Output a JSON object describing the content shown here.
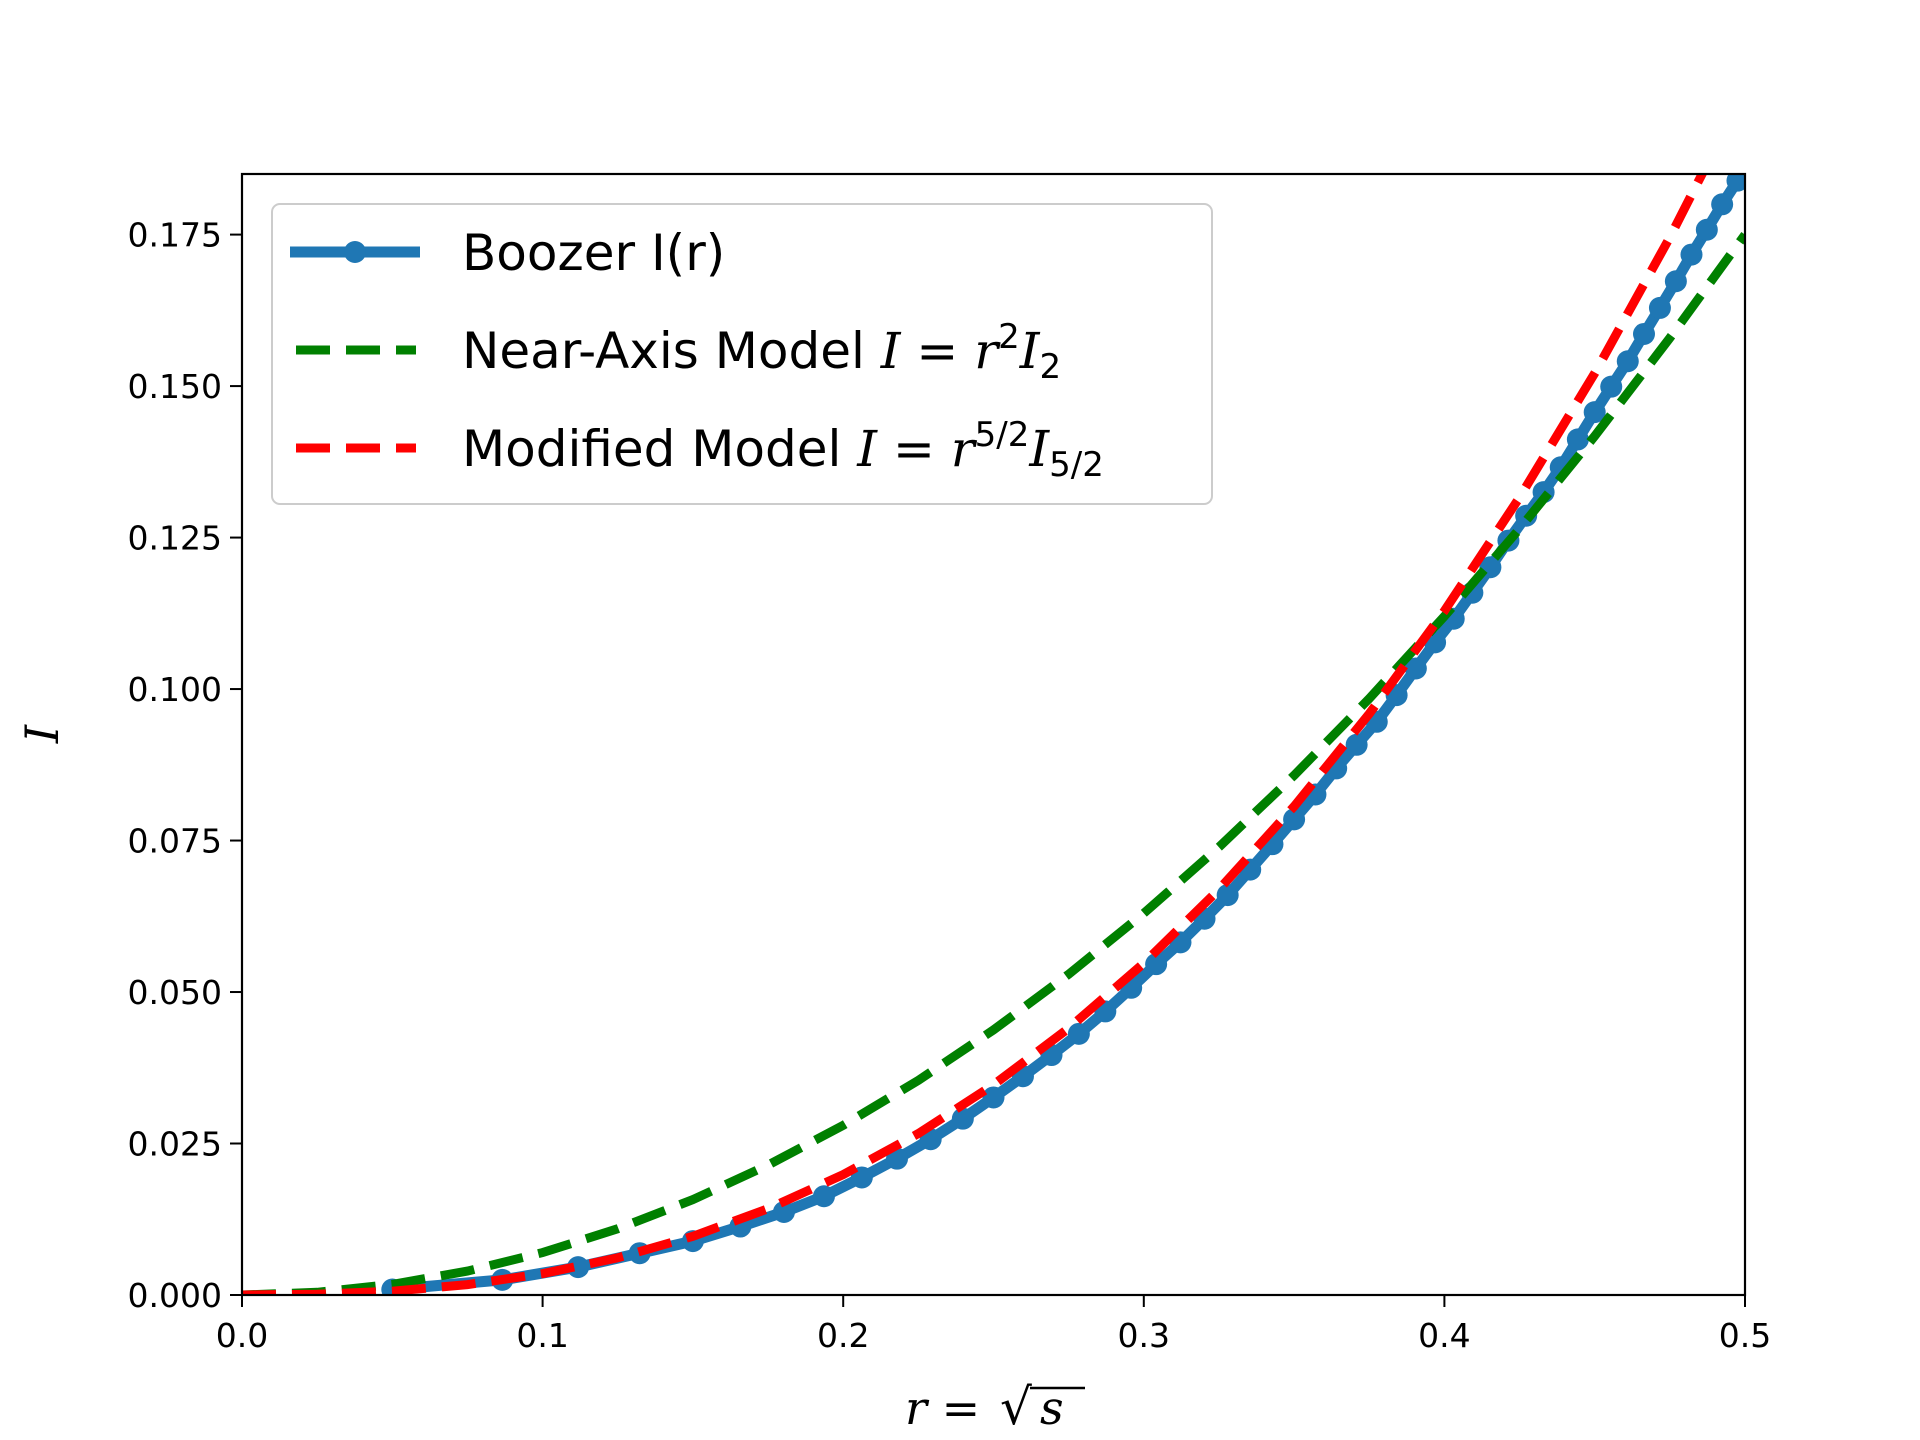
{
  "chart_data": {
    "type": "line",
    "title": "",
    "xlabel": "r = √s",
    "ylabel": "I",
    "xlim": [
      0.0,
      0.5
    ],
    "ylim": [
      0.0,
      0.185
    ],
    "grid": false,
    "legend_position": "top-left",
    "x_ticks": [
      "0.0",
      "0.1",
      "0.2",
      "0.3",
      "0.4",
      "0.5"
    ],
    "y_ticks": [
      "0.000",
      "0.025",
      "0.050",
      "0.075",
      "0.100",
      "0.125",
      "0.150",
      "0.175"
    ],
    "series": [
      {
        "name": "Boozer I(r)",
        "style": "solid-markers",
        "color": "#1f77b4",
        "x": [
          0.05,
          0.0866,
          0.1118,
          0.1323,
          0.15,
          0.1658,
          0.1803,
          0.1936,
          0.2062,
          0.2179,
          0.2291,
          0.2398,
          0.25,
          0.2598,
          0.2693,
          0.2784,
          0.2872,
          0.2958,
          0.3041,
          0.3122,
          0.3202,
          0.3279,
          0.3354,
          0.3428,
          0.35,
          0.3571,
          0.364,
          0.3708,
          0.3775,
          0.3841,
          0.3905,
          0.3969,
          0.4031,
          0.4093,
          0.4153,
          0.4213,
          0.4272,
          0.433,
          0.4387,
          0.4444,
          0.45,
          0.4555,
          0.461,
          0.4664,
          0.4717,
          0.477,
          0.4822,
          0.4873,
          0.4924,
          0.4975
        ],
        "y": [
          0.0009,
          0.0025,
          0.0046,
          0.0069,
          0.0089,
          0.0113,
          0.0137,
          0.0163,
          0.0194,
          0.0225,
          0.0257,
          0.0291,
          0.0326,
          0.0361,
          0.0396,
          0.0431,
          0.0468,
          0.0507,
          0.0546,
          0.0582,
          0.0621,
          0.066,
          0.0702,
          0.0744,
          0.0785,
          0.0826,
          0.0869,
          0.0908,
          0.0946,
          0.099,
          0.1034,
          0.1077,
          0.1116,
          0.1159,
          0.1201,
          0.1245,
          0.1286,
          0.1325,
          0.1366,
          0.1412,
          0.1457,
          0.1499,
          0.1541,
          0.1586,
          0.1629,
          0.1673,
          0.1717,
          0.1758,
          0.18,
          0.1839
        ]
      },
      {
        "name": "Near-Axis Model",
        "formula": "I = r²I₂",
        "style": "dashed",
        "color": "#008000",
        "x": [
          0.0,
          0.025,
          0.05,
          0.075,
          0.1,
          0.125,
          0.15,
          0.175,
          0.2,
          0.225,
          0.25,
          0.275,
          0.3,
          0.325,
          0.35,
          0.375,
          0.4,
          0.425,
          0.45,
          0.475,
          0.5
        ],
        "y": [
          0.0,
          0.00044,
          0.00175,
          0.00394,
          0.007,
          0.01094,
          0.01575,
          0.02144,
          0.028,
          0.03544,
          0.04375,
          0.05294,
          0.063,
          0.07394,
          0.08575,
          0.09844,
          0.112,
          0.12644,
          0.14175,
          0.15794,
          0.175
        ]
      },
      {
        "name": "Modified Model",
        "formula": "I = r^{5/2}I_{5/2}",
        "style": "dashed",
        "color": "#ff0000",
        "x": [
          0.0,
          0.025,
          0.05,
          0.075,
          0.1,
          0.125,
          0.15,
          0.175,
          0.2,
          0.225,
          0.25,
          0.275,
          0.3,
          0.325,
          0.35,
          0.375,
          0.4,
          0.425,
          0.45,
          0.475,
          0.5
        ],
        "y": [
          0.0,
          0.00011,
          0.00062,
          0.00171,
          0.00351,
          0.00614,
          0.00969,
          0.01424,
          0.01987,
          0.02666,
          0.03469,
          0.04403,
          0.05475,
          0.06693,
          0.08063,
          0.09593,
          0.1129,
          0.13161,
          0.15213,
          0.17454,
          0.19889
        ]
      }
    ]
  },
  "legend": {
    "boozer_label": "Boozer I(r)",
    "near_axis_text": "Near-Axis Model",
    "modified_text": "Modified Model",
    "near_axis_math": {
      "lhs": "I",
      "eq": " = ",
      "base": "r",
      "exp": "2",
      "coef": "I",
      "sub": "2"
    },
    "modified_math": {
      "lhs": "I",
      "eq": " = ",
      "base": "r",
      "exp": "5/2",
      "coef": "I",
      "sub": "5/2"
    }
  },
  "axis_titles": {
    "x_lhs": "r",
    "x_eq": " = ",
    "x_radicand": "s",
    "y": "I"
  },
  "colors": {
    "boozer": "#1f77b4",
    "near_axis": "#008000",
    "modified": "#ff0000",
    "axes": "#000000"
  }
}
